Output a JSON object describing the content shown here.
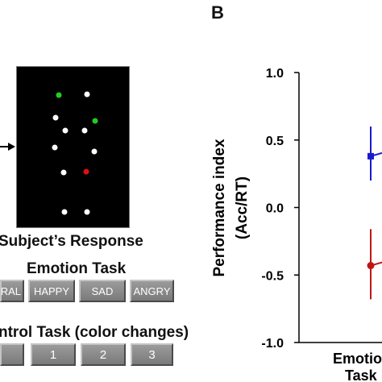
{
  "panel_label": "B",
  "left_panel": {
    "response_label": "Subject’s Response",
    "emotion_task_label": "Emotion Task",
    "emotion_buttons": [
      "RAL",
      "HAPPY",
      "SAD",
      "ANGRY"
    ],
    "control_task_label": "ntrol Task (color changes)",
    "control_buttons": [
      "",
      "1",
      "2",
      "3"
    ],
    "dot_colors": {
      "white": "#ffffff",
      "green": "#22cc22",
      "red": "#e01010"
    }
  },
  "chart_data": {
    "type": "scatter",
    "ylabel_line1": "Performance index",
    "ylabel_line2": "(Acc/RT)",
    "yticks": [
      "1.0",
      "0.5",
      "0.0",
      "-0.5",
      "-1.0"
    ],
    "ylim": [
      -1.0,
      1.0
    ],
    "xlabel_line1": "Emotio",
    "xlabel_line2": "Task",
    "series": [
      {
        "color": "#1a1acc",
        "marker": "square",
        "values": [
          0.38
        ],
        "error": [
          0.22,
          0.18
        ]
      },
      {
        "color": "#c01515",
        "marker": "circle",
        "values": [
          -0.43
        ],
        "error": [
          0.27,
          0.25
        ]
      }
    ]
  }
}
